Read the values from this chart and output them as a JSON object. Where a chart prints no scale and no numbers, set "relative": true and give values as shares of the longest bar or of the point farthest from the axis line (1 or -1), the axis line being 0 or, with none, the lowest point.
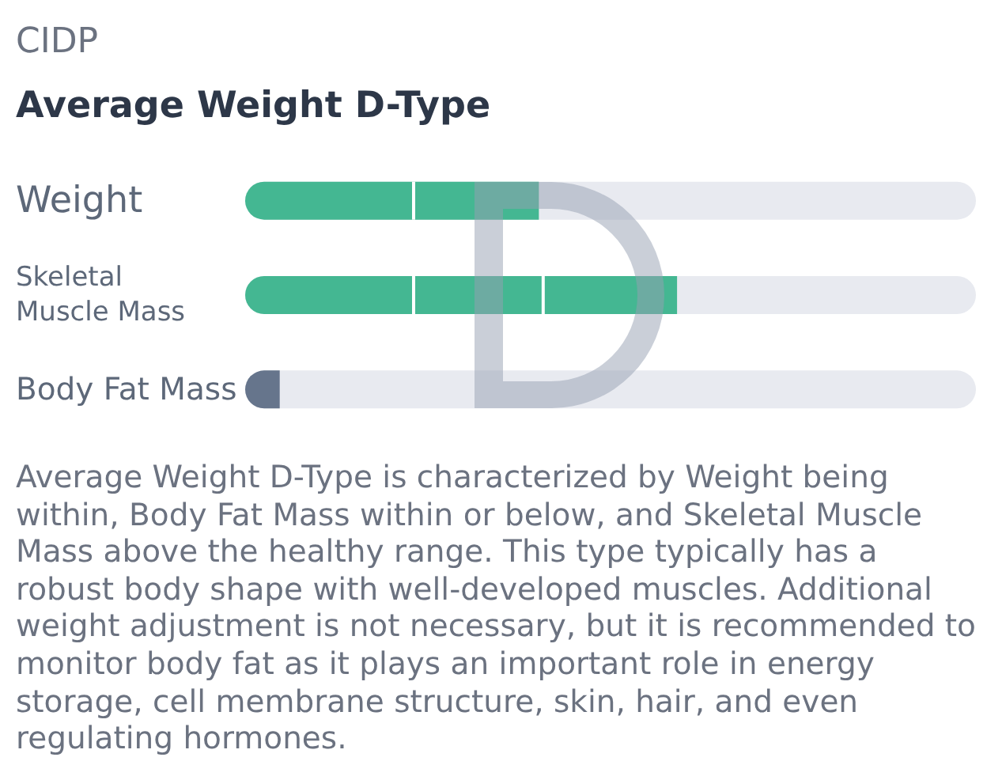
{
  "chart_data": {
    "type": "bar",
    "orientation": "horizontal",
    "relative": true,
    "subtitle": "CIDP",
    "title": "Average Weight D-Type",
    "categories": [
      "Weight",
      "Skeletal Muscle Mass",
      "Body Fat Mass"
    ],
    "values": [
      0.68,
      1,
      0.08
    ],
    "colors": [
      "#44b792",
      "#44b792",
      "#66758c"
    ],
    "ref_lines": [
      {
        "axis": "x",
        "value": 0.39,
        "color": "#ffffff"
      },
      {
        "axis": "x",
        "value": 0.69,
        "color": "#ffffff"
      }
    ],
    "annotations": [
      "Average Weight D-Type is characterized by Weight being within, Body Fat Mass within or below, and Skeletal Muscle Mass above the healthy range. This type typically has a robust body shape with well-developed muscles. Additional weight adjustment is not necessary, but it is recommended to monitor body fat as it plays an important role in energy storage, cell membrane structure, skin, hair, and even regulating hormones."
    ]
  }
}
